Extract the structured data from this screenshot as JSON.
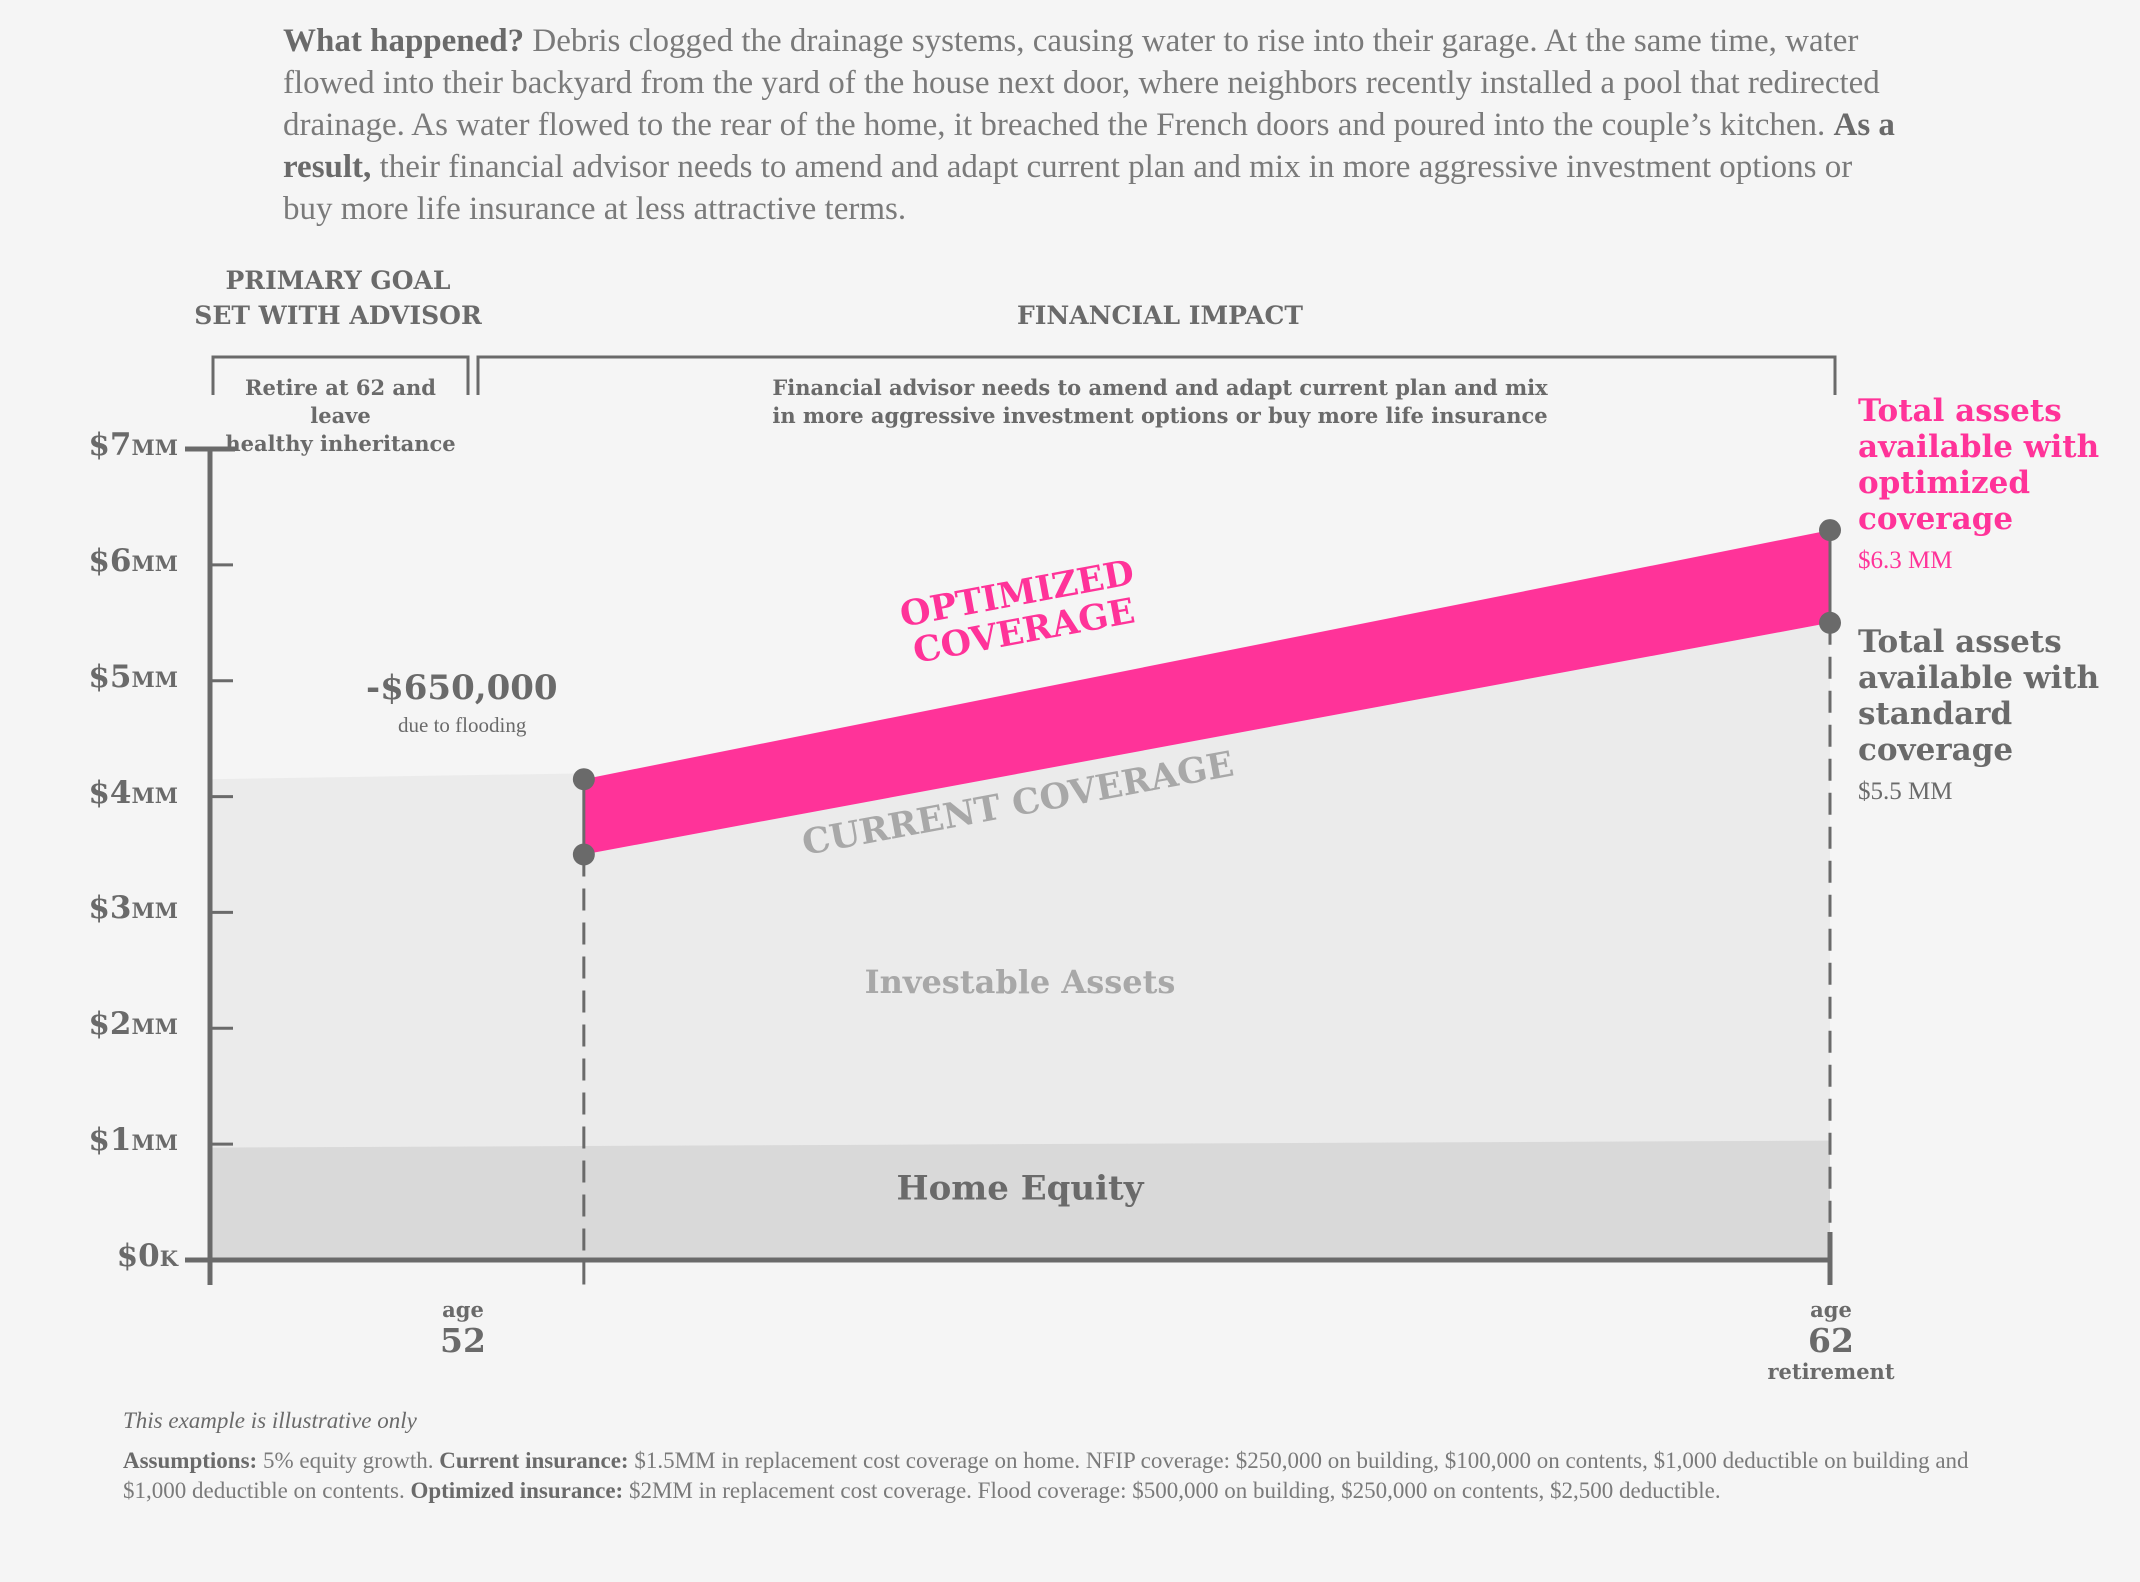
{
  "intro": {
    "lead": "What happened?",
    "text1": " Debris clogged the drainage systems, causing water to rise into their garage. At the same time, water flowed into their backyard from the yard of the house next door, where neighbors recently installed a pool that redirected drainage. As water flowed to the rear of the home, it breached the French doors and poured into the couple’s kitchen. ",
    "result_lead": "As a result,",
    "text2": " their financial advisor needs to amend and adapt current plan and mix in more aggressive investment options or buy more life insurance at less attractive terms."
  },
  "headers": {
    "goal_line1": "PRIMARY GOAL",
    "goal_line2": "SET WITH ADVISOR",
    "impact": "FINANCIAL IMPACT",
    "goal_sub_line1": "Retire at 62 and leave",
    "goal_sub_line2": "healthy inheritance",
    "impact_sub_line1": "Financial advisor needs to amend and adapt current plan and mix",
    "impact_sub_line2": "in more aggressive investment options or buy more life insurance"
  },
  "chart_data": {
    "type": "area",
    "y_ticks": [
      {
        "value": 0,
        "num": "$0",
        "unit": "K"
      },
      {
        "value": 1,
        "num": "$1",
        "unit": "MM"
      },
      {
        "value": 2,
        "num": "$2",
        "unit": "MM"
      },
      {
        "value": 3,
        "num": "$3",
        "unit": "MM"
      },
      {
        "value": 4,
        "num": "$4",
        "unit": "MM"
      },
      {
        "value": 5,
        "num": "$5",
        "unit": "MM"
      },
      {
        "value": 6,
        "num": "$6",
        "unit": "MM"
      },
      {
        "value": 7,
        "num": "$7",
        "unit": "MM"
      }
    ],
    "ylim": [
      0,
      7
    ],
    "xlim": [
      49,
      62
    ],
    "home_equity": {
      "label": "Home Equity",
      "start": 0.97,
      "end": 1.03
    },
    "investable_assets": {
      "label": "Investable Assets",
      "pre_flood_start": 4.15,
      "pre_flood_end": 4.2,
      "post_flood_start": 3.5,
      "end": 5.5
    },
    "current_coverage": {
      "label": "CURRENT COVERAGE"
    },
    "optimized_coverage": {
      "label_line1": "OPTIMIZED",
      "label_line2": "COVERAGE",
      "start": 4.15,
      "end": 6.3,
      "color": "#ff3399"
    },
    "flood_loss": {
      "value": "-$650,000",
      "note": "due to flooding",
      "age": 52
    },
    "ages": [
      {
        "age_label": "age",
        "age": "52",
        "sub": ""
      },
      {
        "age_label": "age",
        "age": "62",
        "sub": "retirement"
      }
    ],
    "optimized_total": {
      "label": "Total assets available with optimized coverage",
      "value": "$6.3 MM"
    },
    "standard_total": {
      "label": "Total assets available with standard coverage",
      "value": "$5.5 MM"
    }
  },
  "footer": {
    "note": "This example is illustrative only",
    "a_lead": "Assumptions:",
    "a_text": " 5% equity growth. ",
    "c_lead": "Current insurance:",
    "c_text": " $1.5MM in replacement cost coverage on home. NFIP coverage: $250,000 on building, $100,000 on contents, $1,000 deductible on building and $1,000 deductible on contents. ",
    "o_lead": "Optimized insurance:",
    "o_text": " $2MM in replacement cost coverage. Flood coverage: $500,000 on building, $250,000 on contents, $2,500 deductible."
  }
}
